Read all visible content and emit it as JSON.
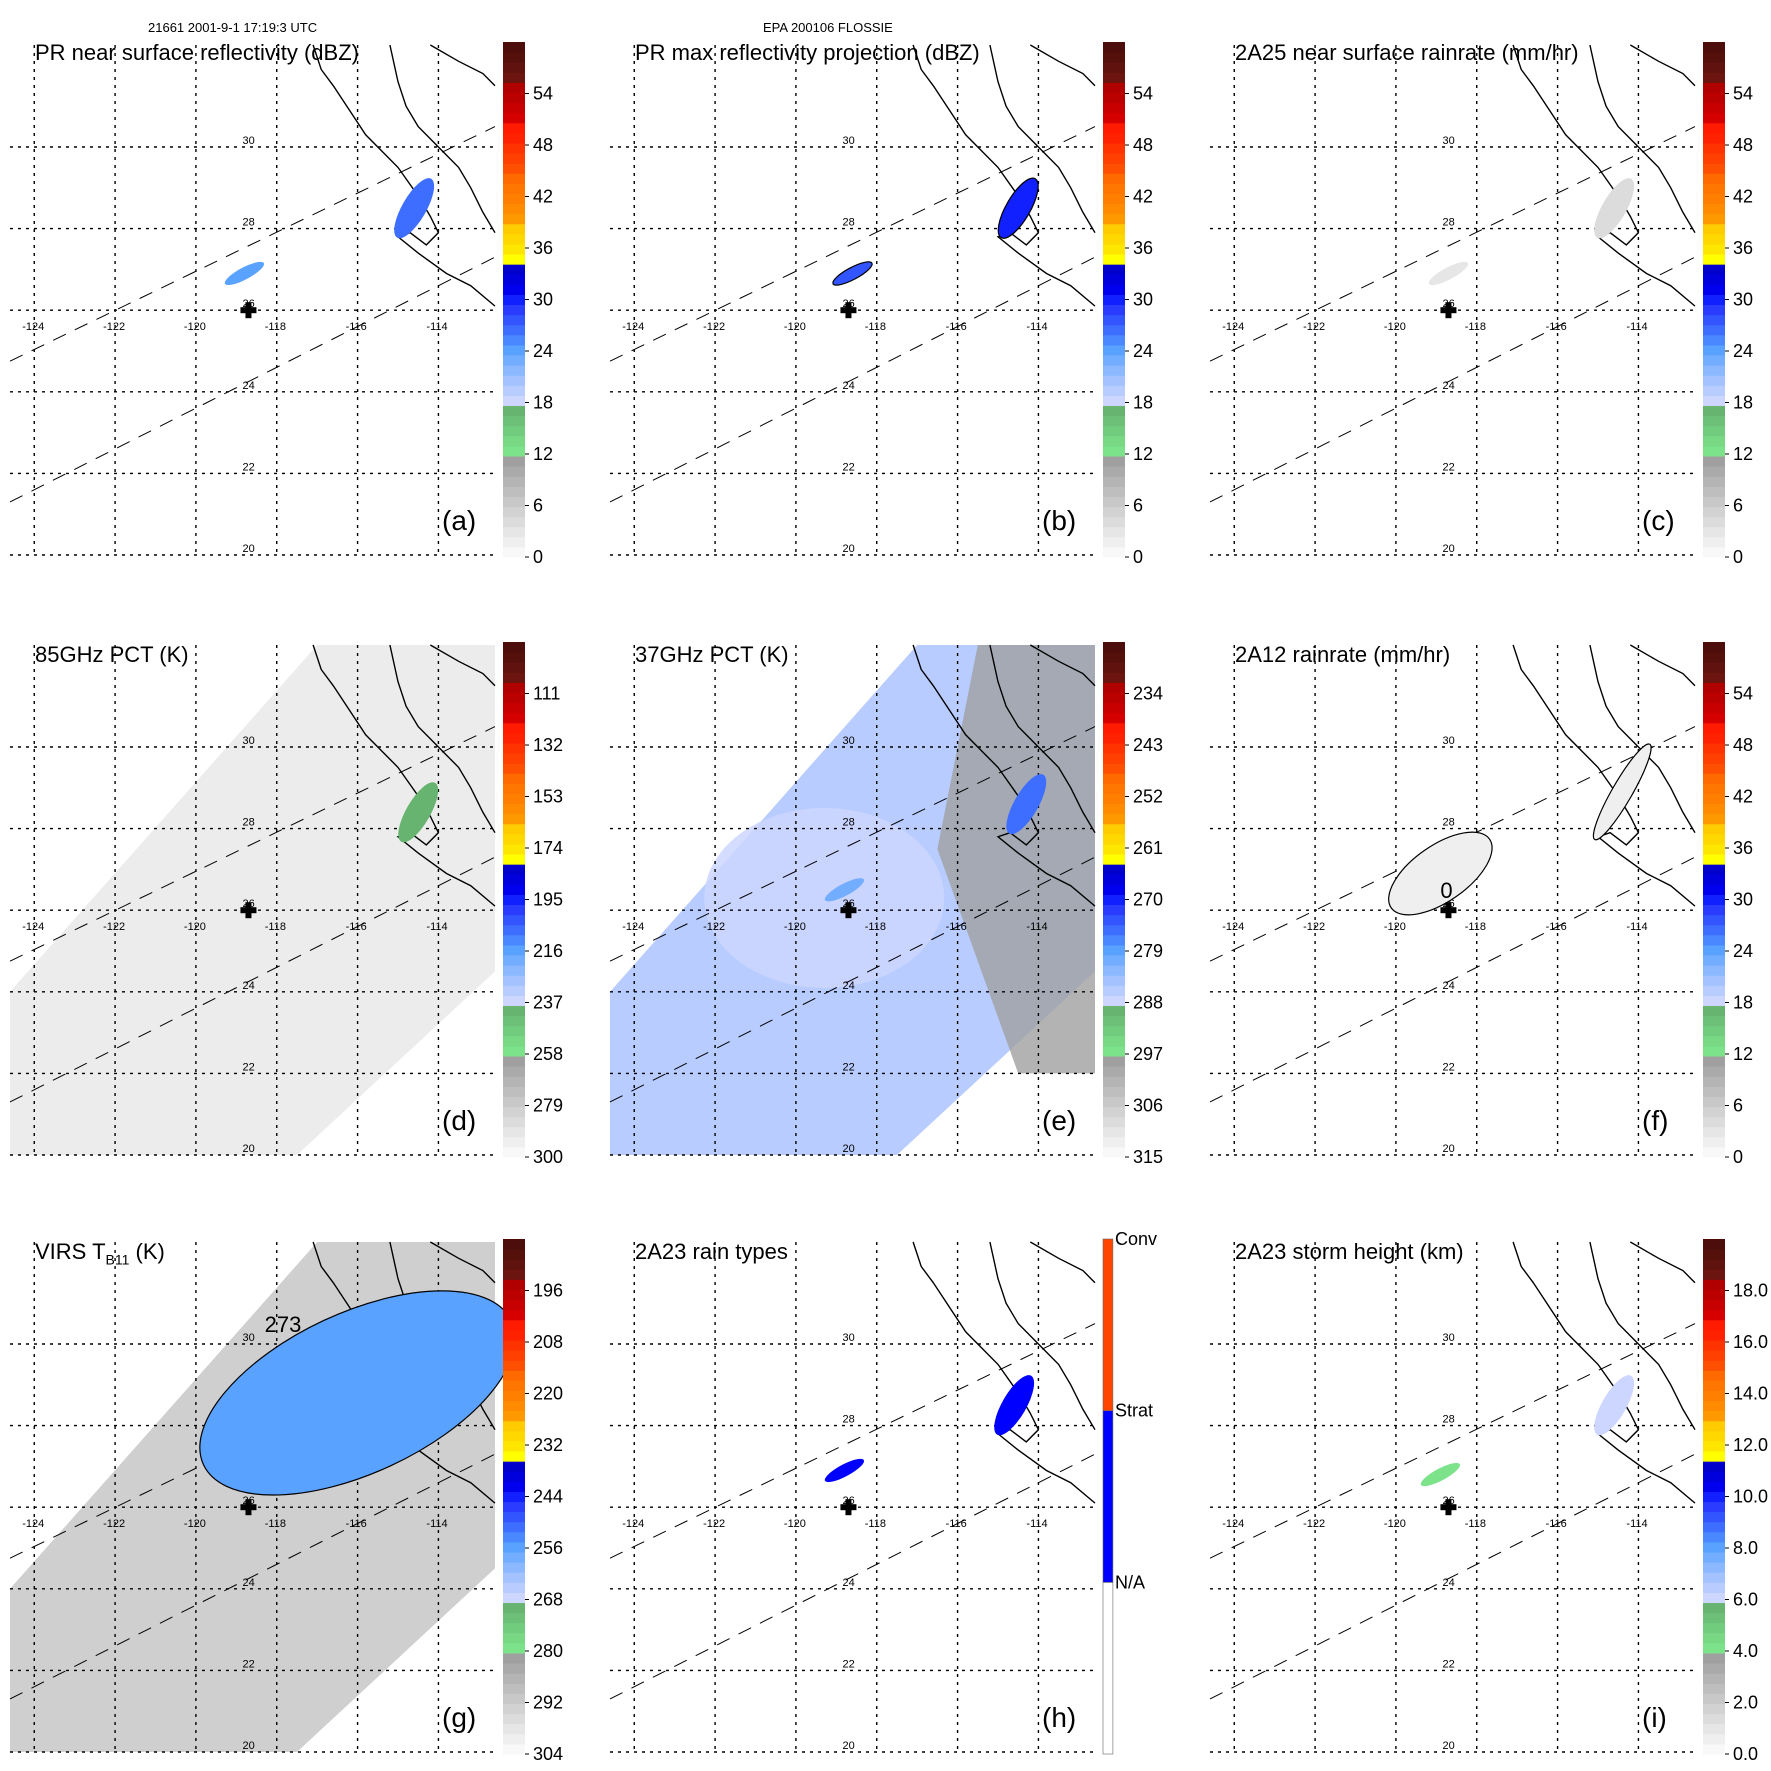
{
  "header": {
    "left": "21661 2001-9-1 17:19:3 UTC",
    "center": "EPA 200106 FLOSSIE"
  },
  "colors": {
    "palette_60": [
      "#f8f8f8",
      "#efefef",
      "#e6e6e6",
      "#dcdcdc",
      "#d2d2d2",
      "#c8c8c8",
      "#bebebe",
      "#b4b4b4",
      "#aaaaaa",
      "#a0a0a0",
      "#7de38a",
      "#78d884",
      "#72cc7e",
      "#6cc077",
      "#66b470",
      "#ccd6ff",
      "#b8ccff",
      "#a3c2ff",
      "#8cb8ff",
      "#73adff",
      "#5aa2ff",
      "#4a88ff",
      "#3d6eff",
      "#3355ff",
      "#2a3cff",
      "#1020ff",
      "#0000ee",
      "#0000dd",
      "#0000cc",
      "#ffff00",
      "#ffe600",
      "#ffd800",
      "#ffcc00",
      "#ff9900",
      "#ff8c00",
      "#ff8000",
      "#ff7700",
      "#ff6a00",
      "#ff4f00",
      "#ff4000",
      "#ff3300",
      "#ff2200",
      "#ff1a00",
      "#d60000",
      "#c80000",
      "#bb0000",
      "#b00000",
      "#6b1410",
      "#5f120e",
      "#56100c",
      "#4d0e0b"
    ],
    "rain_type": {
      "conv": "#ff4500",
      "strat": "#0000ff",
      "na": "#ffffff"
    }
  },
  "chart_data": [
    {
      "id": "a",
      "type": "heatmap",
      "title": "PR near surface reflectivity (dBZ)",
      "panel_label": "(a)",
      "units": "dBZ",
      "colorbar_ticks": [
        "0",
        "6",
        "12",
        "18",
        "24",
        "30",
        "36",
        "42",
        "48",
        "54"
      ],
      "colorbar_range": [
        0,
        60
      ],
      "xticks": [
        "-124",
        "-122",
        "-120",
        "-118",
        "-116",
        "-114"
      ],
      "yticks": [
        "20",
        "22",
        "24",
        "26",
        "28",
        "30"
      ],
      "xlim": [
        -124.6,
        -112.6
      ],
      "ylim": [
        20,
        32.5
      ],
      "grid": true,
      "storm_center": [
        -118.7,
        26.0
      ],
      "features": [
        {
          "kind": "echo",
          "lon": -118.8,
          "lat": 26.9,
          "value": 24
        },
        {
          "kind": "echo",
          "lon": -114.6,
          "lat": 28.5,
          "value": 26
        }
      ]
    },
    {
      "id": "b",
      "type": "heatmap",
      "title": "PR max reflectivity projection (dBZ)",
      "panel_label": "(b)",
      "units": "dBZ",
      "colorbar_ticks": [
        "0",
        "6",
        "12",
        "18",
        "24",
        "30",
        "36",
        "42",
        "48",
        "54"
      ],
      "colorbar_range": [
        0,
        60
      ],
      "xticks": [
        "-124",
        "-122",
        "-120",
        "-118",
        "-116",
        "-114"
      ],
      "yticks": [
        "20",
        "22",
        "24",
        "26",
        "28",
        "30"
      ],
      "xlim": [
        -124.6,
        -112.6
      ],
      "ylim": [
        20,
        32.5
      ],
      "grid": true,
      "storm_center": [
        -118.7,
        26.0
      ],
      "features": [
        {
          "kind": "echo",
          "lon": -118.6,
          "lat": 26.9,
          "value": 28
        },
        {
          "kind": "echo",
          "lon": -114.5,
          "lat": 28.5,
          "value": 30
        }
      ]
    },
    {
      "id": "c",
      "type": "heatmap",
      "title": "2A25 near surface rainrate (mm/hr)",
      "panel_label": "(c)",
      "units": "mm/hr",
      "colorbar_ticks": [
        "0",
        "6",
        "12",
        "18",
        "24",
        "30",
        "36",
        "42",
        "48",
        "54"
      ],
      "colorbar_range": [
        0,
        60
      ],
      "xticks": [
        "-124",
        "-122",
        "-120",
        "-118",
        "-116",
        "-114"
      ],
      "yticks": [
        "20",
        "22",
        "24",
        "26",
        "28",
        "30"
      ],
      "xlim": [
        -124.6,
        -112.6
      ],
      "ylim": [
        20,
        32.5
      ],
      "grid": true,
      "storm_center": [
        -118.7,
        26.0
      ],
      "features": [
        {
          "kind": "echo",
          "lon": -118.7,
          "lat": 26.9,
          "value": 3
        },
        {
          "kind": "echo",
          "lon": -114.6,
          "lat": 28.5,
          "value": 4
        }
      ]
    },
    {
      "id": "d",
      "type": "heatmap",
      "title": "85GHz PCT (K)",
      "panel_label": "(d)",
      "units": "K",
      "colorbar_ticks": [
        "300",
        "279",
        "258",
        "237",
        "216",
        "195",
        "174",
        "153",
        "132",
        "111"
      ],
      "colorbar_range": [
        300,
        90
      ],
      "xticks": [
        "-124",
        "-122",
        "-120",
        "-118",
        "-116",
        "-114"
      ],
      "yticks": [
        "20",
        "22",
        "24",
        "26",
        "28",
        "30"
      ],
      "xlim": [
        -124.6,
        -112.6
      ],
      "ylim": [
        20,
        32.5
      ],
      "grid": true,
      "storm_center": [
        -118.7,
        26.0
      ],
      "swath_fill_value": 288,
      "features": [
        {
          "kind": "echo",
          "lon": -114.5,
          "lat": 28.4,
          "value": 240
        }
      ]
    },
    {
      "id": "e",
      "type": "heatmap",
      "title": "37GHz PCT (K)",
      "panel_label": "(e)",
      "units": "K",
      "colorbar_ticks": [
        "315",
        "306",
        "297",
        "288",
        "279",
        "270",
        "261",
        "252",
        "243",
        "234"
      ],
      "colorbar_range": [
        315,
        225
      ],
      "xticks": [
        "-124",
        "-122",
        "-120",
        "-118",
        "-116",
        "-114"
      ],
      "yticks": [
        "20",
        "22",
        "24",
        "26",
        "28",
        "30"
      ],
      "xlim": [
        -124.6,
        -112.6
      ],
      "ylim": [
        20,
        32.5
      ],
      "grid": true,
      "storm_center": [
        -118.7,
        26.0
      ],
      "swath_fill_value": 286,
      "features": [
        {
          "kind": "echo",
          "lon": -118.8,
          "lat": 26.5,
          "value": 280
        },
        {
          "kind": "echo",
          "lon": -114.3,
          "lat": 28.6,
          "value": 275
        }
      ]
    },
    {
      "id": "f",
      "type": "heatmap",
      "title": "2A12 rainrate (mm/hr)",
      "panel_label": "(f)",
      "units": "mm/hr",
      "colorbar_ticks": [
        "0",
        "6",
        "12",
        "18",
        "24",
        "30",
        "36",
        "42",
        "48",
        "54"
      ],
      "colorbar_range": [
        0,
        60
      ],
      "xticks": [
        "-124",
        "-122",
        "-120",
        "-118",
        "-116",
        "-114"
      ],
      "yticks": [
        "20",
        "22",
        "24",
        "26",
        "28",
        "30"
      ],
      "xlim": [
        -124.6,
        -112.6
      ],
      "ylim": [
        20,
        32.5
      ],
      "grid": true,
      "storm_center": [
        -118.7,
        26.0
      ],
      "contour_label": "0",
      "features": [
        {
          "kind": "echo",
          "lon": -118.9,
          "lat": 26.9,
          "value": 2
        },
        {
          "kind": "echo",
          "lon": -114.4,
          "lat": 28.9,
          "value": 2
        }
      ]
    },
    {
      "id": "g",
      "type": "heatmap",
      "title": "VIRS T",
      "title_sub": "B11",
      "title_suffix": " (K)",
      "panel_label": "(g)",
      "units": "K",
      "colorbar_ticks": [
        "304",
        "292",
        "280",
        "268",
        "256",
        "244",
        "232",
        "220",
        "208",
        "196"
      ],
      "colorbar_range": [
        304,
        184
      ],
      "xticks": [
        "-124",
        "-122",
        "-120",
        "-118",
        "-116",
        "-114"
      ],
      "yticks": [
        "20",
        "22",
        "24",
        "26",
        "28",
        "30"
      ],
      "xlim": [
        -124.6,
        -112.6
      ],
      "ylim": [
        20,
        32.5
      ],
      "grid": true,
      "storm_center": [
        -118.7,
        26.0
      ],
      "contour_label": "273",
      "swath_fill_value": 285,
      "features": [
        {
          "kind": "cloud",
          "lon": -116.0,
          "lat": 28.8,
          "value": 255
        }
      ]
    },
    {
      "id": "h",
      "type": "heatmap",
      "title": "2A23 rain types",
      "panel_label": "(h)",
      "categories": [
        "N/A",
        "Strat",
        "Conv"
      ],
      "xticks": [
        "-124",
        "-122",
        "-120",
        "-118",
        "-116",
        "-114"
      ],
      "yticks": [
        "20",
        "22",
        "24",
        "26",
        "28",
        "30"
      ],
      "xlim": [
        -124.6,
        -112.6
      ],
      "ylim": [
        20,
        32.5
      ],
      "grid": true,
      "storm_center": [
        -118.7,
        26.0
      ],
      "features": [
        {
          "kind": "echo",
          "lon": -118.8,
          "lat": 26.9,
          "category": "Strat"
        },
        {
          "kind": "echo",
          "lon": -114.6,
          "lat": 28.5,
          "category": "Strat"
        }
      ]
    },
    {
      "id": "i",
      "type": "heatmap",
      "title": "2A23 storm height (km)",
      "panel_label": "(i)",
      "units": "km",
      "colorbar_ticks": [
        "0.0",
        "2.0",
        "4.0",
        "6.0",
        "8.0",
        "10.0",
        "12.0",
        "14.0",
        "16.0",
        "18.0"
      ],
      "colorbar_range": [
        0,
        20
      ],
      "xticks": [
        "-124",
        "-122",
        "-120",
        "-118",
        "-116",
        "-114"
      ],
      "yticks": [
        "20",
        "22",
        "24",
        "26",
        "28",
        "30"
      ],
      "xlim": [
        -124.6,
        -112.6
      ],
      "ylim": [
        20,
        32.5
      ],
      "grid": true,
      "storm_center": [
        -118.7,
        26.0
      ],
      "features": [
        {
          "kind": "echo",
          "lon": -118.9,
          "lat": 26.8,
          "value": 4
        },
        {
          "kind": "echo",
          "lon": -114.6,
          "lat": 28.5,
          "value": 6
        }
      ]
    }
  ]
}
